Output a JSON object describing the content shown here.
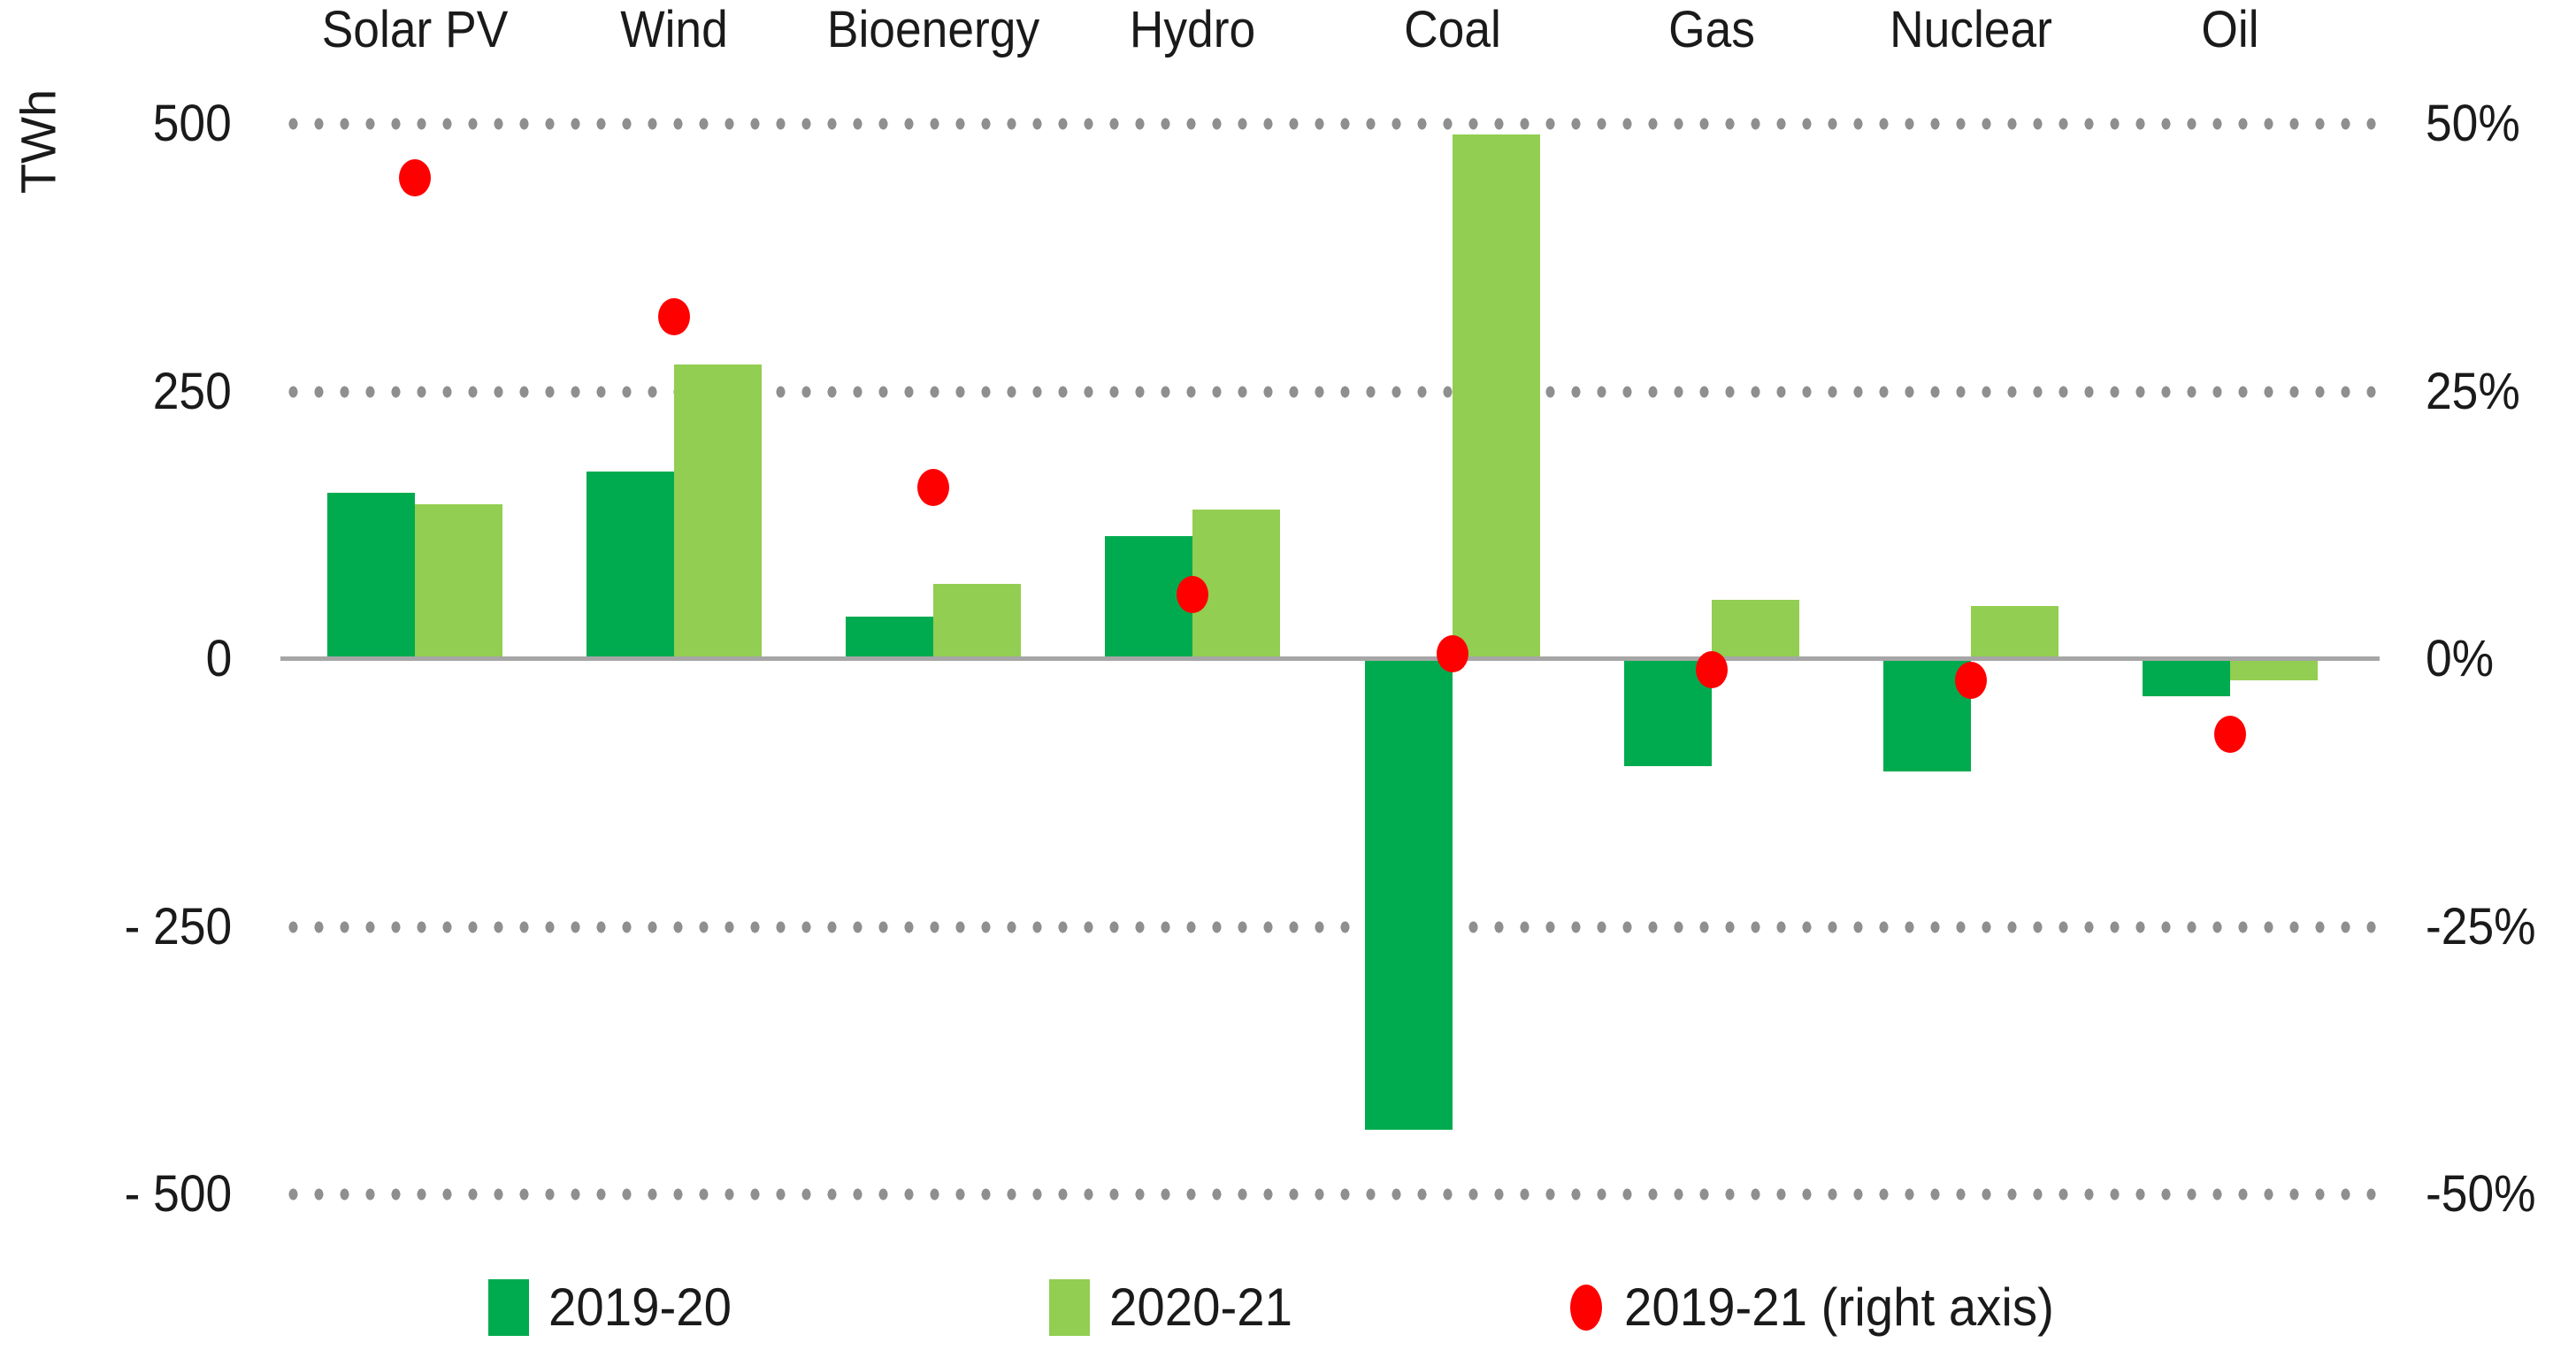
{
  "chart_data": {
    "type": "bar",
    "categories": [
      "Solar PV",
      "Wind",
      "Bioenergy",
      "Hydro",
      "Coal",
      "Gas",
      "Nuclear",
      "Oil"
    ],
    "left_axis": {
      "title": "TWh",
      "range": [
        -500,
        500
      ],
      "ticks": [
        {
          "value": 500,
          "label": "500"
        },
        {
          "value": 250,
          "label": "250"
        },
        {
          "value": 0,
          "label": "0"
        },
        {
          "value": -250,
          "label": "- 250"
        },
        {
          "value": -500,
          "label": "- 500"
        }
      ]
    },
    "right_axis": {
      "range": [
        -50,
        50
      ],
      "ticks": [
        {
          "value": 50,
          "label": "50%"
        },
        {
          "value": 25,
          "label": "25%"
        },
        {
          "value": 0,
          "label": "0%"
        },
        {
          "value": -25,
          "label": "-25%"
        },
        {
          "value": -50,
          "label": "-50%"
        }
      ]
    },
    "series": [
      {
        "name": "2019-20",
        "type": "bar",
        "axis": "left",
        "unit": "TWh",
        "color": "#00AB4F",
        "values": [
          155,
          175,
          40,
          115,
          -440,
          -100,
          -105,
          -35
        ]
      },
      {
        "name": "2020-21",
        "type": "bar",
        "axis": "left",
        "unit": "TWh",
        "color": "#92CE51",
        "values": [
          145,
          275,
          70,
          140,
          490,
          55,
          50,
          -20
        ]
      },
      {
        "name": "2019-21 (right axis)",
        "type": "scatter",
        "axis": "right",
        "unit": "%",
        "color": "#FF0000",
        "values": [
          45,
          32,
          16,
          6,
          0.5,
          -1,
          -2,
          -7
        ]
      }
    ],
    "gridlines": {
      "style": "dotted",
      "color": "#8F8F8F",
      "zero_line_color": "#A6A6A6"
    }
  },
  "legend": {
    "items": [
      {
        "label": "2019-20",
        "marker": "bar-swatch",
        "color": "#00AB4F"
      },
      {
        "label": "2020-21",
        "marker": "bar-swatch",
        "color": "#92CE51"
      },
      {
        "label": "2019-21 (right axis)",
        "marker": "dot",
        "color": "#FF0000"
      }
    ]
  },
  "colors": {
    "text": "#1A1A1A",
    "grid_dots": "#8F8F8F",
    "zero_axis": "#A6A6A6",
    "background": "#FFFFFF"
  }
}
